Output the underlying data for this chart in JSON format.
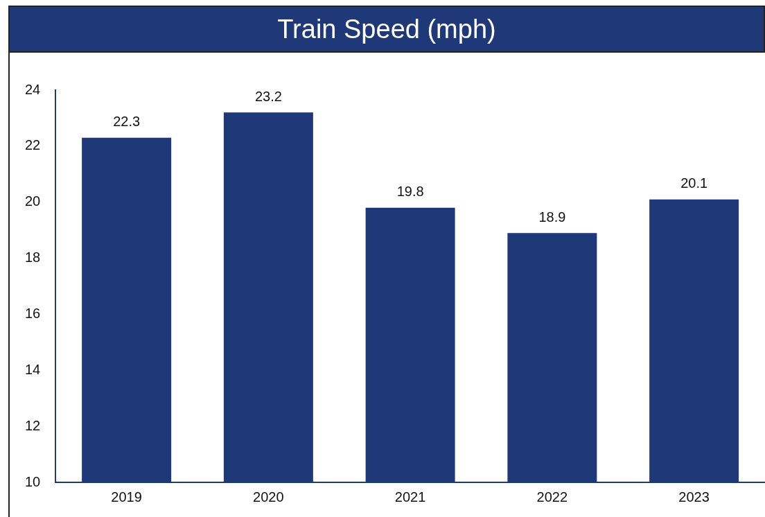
{
  "chart_data": {
    "type": "bar",
    "title": "Train Speed (mph)",
    "categories": [
      "2019",
      "2020",
      "2021",
      "2022",
      "2023"
    ],
    "values": [
      22.3,
      23.2,
      19.8,
      18.9,
      20.1
    ],
    "color": "#1f3877",
    "ylim": [
      10,
      24
    ],
    "yticks": [
      10,
      12,
      14,
      16,
      18,
      20,
      22,
      24
    ],
    "grid": false,
    "legend": false,
    "data_labels": true
  }
}
